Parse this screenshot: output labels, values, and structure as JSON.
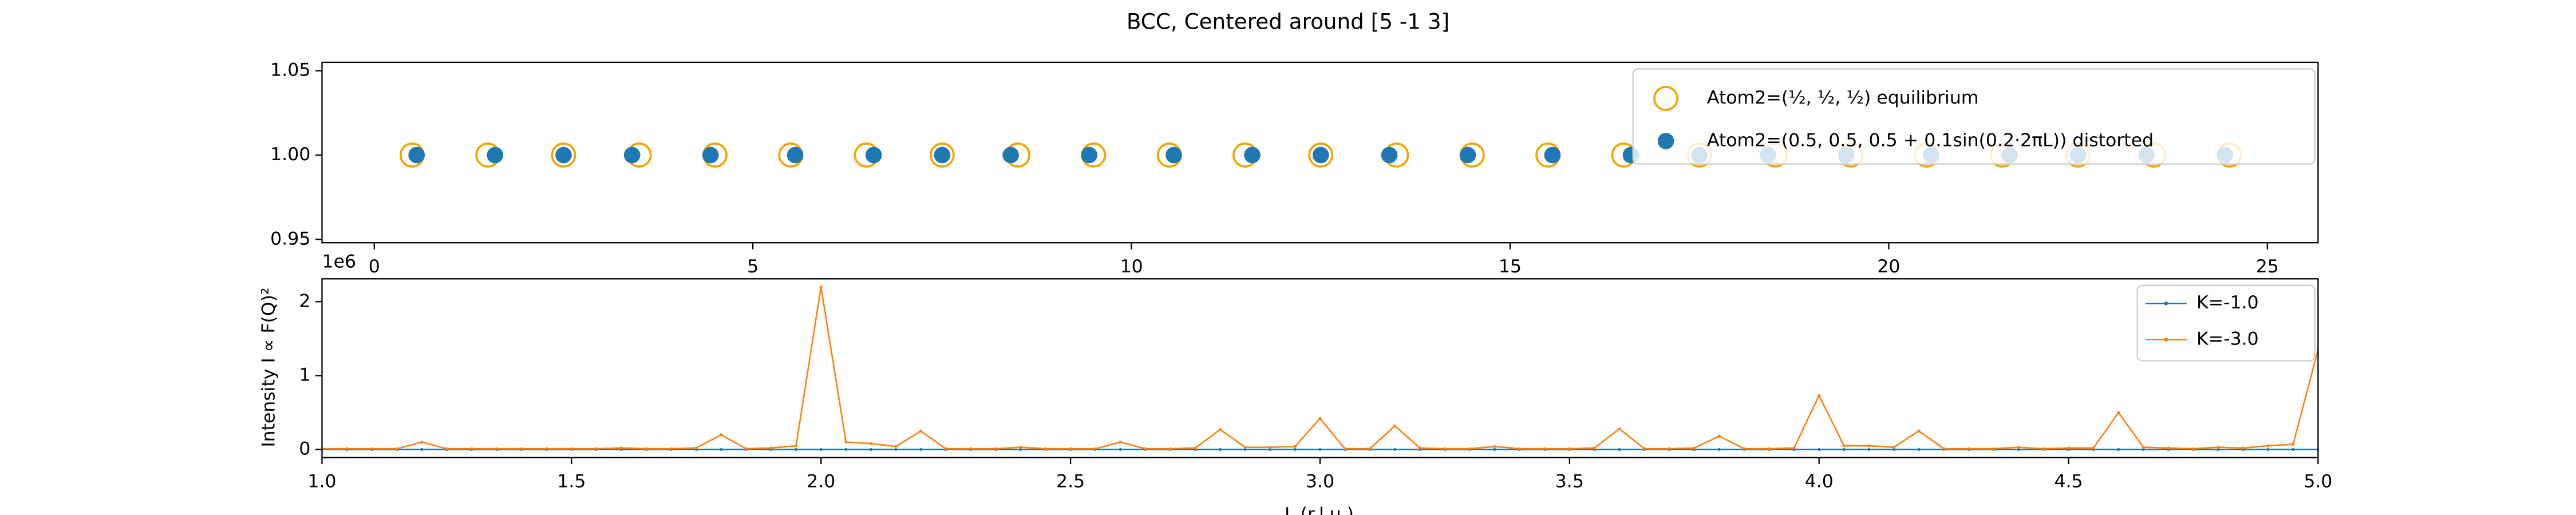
{
  "chart_data": [
    {
      "type": "scatter",
      "title": "BCC, Centered around [5 -1 3]",
      "xlim": [
        -0.69,
        25.67
      ],
      "xticks": [
        0,
        5,
        10,
        15,
        20,
        25
      ],
      "ylim": [
        0.948,
        1.055
      ],
      "yticks": [
        {
          "value": 0.95,
          "label": "0.95"
        },
        {
          "value": 1.0,
          "label": "1.00"
        },
        {
          "value": 1.05,
          "label": "1.05"
        }
      ],
      "legend": "upper right",
      "series": [
        {
          "name": "Atom2=(½, ½, ½) equilibrium",
          "color": "#f5a300",
          "marker": "hollow",
          "x": [
            0.5,
            1.5,
            2.5,
            3.5,
            4.5,
            5.5,
            6.5,
            7.5,
            8.5,
            9.5,
            10.5,
            11.5,
            12.5,
            13.5,
            14.5,
            15.5,
            16.5,
            17.5,
            18.5,
            19.5,
            20.5,
            21.5,
            22.5,
            23.5,
            24.5
          ],
          "values": [
            1,
            1,
            1,
            1,
            1,
            1,
            1,
            1,
            1,
            1,
            1,
            1,
            1,
            1,
            1,
            1,
            1,
            1,
            1,
            1,
            1,
            1,
            1,
            1,
            1
          ]
        },
        {
          "name": "Atom2=(0.5, 0.5, 0.5 + 0.1sin(0.2·2πL)) distorted",
          "color": "#1f77b4",
          "marker": "filled",
          "x": [
            0.559,
            1.595,
            2.5,
            3.405,
            4.441,
            5.559,
            6.595,
            7.5,
            8.405,
            9.441,
            10.559,
            11.595,
            12.5,
            13.405,
            14.441,
            15.559,
            16.595,
            17.5,
            18.405,
            19.441,
            20.559,
            21.595,
            22.5,
            23.405,
            24.441
          ],
          "values": [
            1,
            1,
            1,
            1,
            1,
            1,
            1,
            1,
            1,
            1,
            1,
            1,
            1,
            1,
            1,
            1,
            1,
            1,
            1,
            1,
            1,
            1,
            1,
            1,
            1
          ]
        }
      ]
    },
    {
      "type": "line",
      "x_label": "L (r.l.u.)",
      "y_label": "Intensity I ∝ F(Q)²",
      "offset_label": "1e6",
      "xlim": [
        1.0,
        5.0
      ],
      "xticks": [
        {
          "value": 1,
          "label": "1.0"
        },
        {
          "value": 1.5,
          "label": "1.5"
        },
        {
          "value": 2,
          "label": "2.0"
        },
        {
          "value": 2.5,
          "label": "2.5"
        },
        {
          "value": 3,
          "label": "3.0"
        },
        {
          "value": 3.5,
          "label": "3.5"
        },
        {
          "value": 4,
          "label": "4.0"
        },
        {
          "value": 4.5,
          "label": "4.5"
        },
        {
          "value": 5,
          "label": "5.0"
        }
      ],
      "ylim": [
        -0.11,
        2.31
      ],
      "yticks": [
        0,
        1,
        2
      ],
      "legend": "upper right",
      "x": [
        1.0,
        1.05,
        1.1,
        1.15,
        1.2,
        1.25,
        1.3,
        1.35,
        1.4,
        1.45,
        1.5,
        1.55,
        1.6,
        1.65,
        1.7,
        1.75,
        1.8,
        1.85,
        1.9,
        1.95,
        2.0,
        2.05,
        2.1,
        2.15,
        2.2,
        2.25,
        2.3,
        2.35,
        2.4,
        2.45,
        2.5,
        2.55,
        2.6,
        2.65,
        2.7,
        2.75,
        2.8,
        2.85,
        2.9,
        2.95,
        3.0,
        3.05,
        3.1,
        3.15,
        3.2,
        3.25,
        3.3,
        3.35,
        3.4,
        3.45,
        3.5,
        3.55,
        3.6,
        3.65,
        3.7,
        3.75,
        3.8,
        3.85,
        3.9,
        3.95,
        4.0,
        4.05,
        4.1,
        4.15,
        4.2,
        4.25,
        4.3,
        4.35,
        4.4,
        4.45,
        4.5,
        4.55,
        4.6,
        4.65,
        4.7,
        4.75,
        4.8,
        4.85,
        4.9,
        4.95,
        5.0
      ],
      "series": [
        {
          "name": "K=-1.0",
          "color": "#1f77b4",
          "values": [
            0,
            0,
            0,
            0,
            0,
            0,
            0,
            0,
            0,
            0,
            0,
            0,
            0,
            0,
            0,
            0,
            0,
            0,
            0,
            0,
            0,
            0,
            0,
            0,
            0,
            0,
            0,
            0,
            0,
            0,
            0,
            0,
            0,
            0,
            0,
            0,
            0,
            0,
            0,
            0,
            0,
            0,
            0,
            0,
            0,
            0,
            0,
            0,
            0,
            0,
            0,
            0,
            0,
            0,
            0,
            0,
            0,
            0,
            0,
            0,
            0,
            0,
            0,
            0,
            0,
            0,
            0,
            0,
            0,
            0,
            0,
            0,
            0,
            0,
            0,
            0,
            0,
            0,
            0,
            0,
            0
          ]
        },
        {
          "name": "K=-3.0",
          "color": "#ff7f0e",
          "values": [
            0.01,
            0.01,
            0.01,
            0.01,
            0.1,
            0.01,
            0.01,
            0.01,
            0.01,
            0.01,
            0.01,
            0.01,
            0.02,
            0.01,
            0.01,
            0.02,
            0.2,
            0.01,
            0.02,
            0.05,
            2.2,
            0.1,
            0.08,
            0.04,
            0.25,
            0.01,
            0.01,
            0.01,
            0.03,
            0.01,
            0.01,
            0.01,
            0.1,
            0.01,
            0.01,
            0.02,
            0.27,
            0.03,
            0.03,
            0.04,
            0.42,
            0.01,
            0.01,
            0.32,
            0.02,
            0.01,
            0.01,
            0.04,
            0.01,
            0.01,
            0.01,
            0.02,
            0.28,
            0.01,
            0.01,
            0.02,
            0.18,
            0.01,
            0.01,
            0.02,
            0.73,
            0.05,
            0.05,
            0.03,
            0.25,
            0.01,
            0.01,
            0.01,
            0.03,
            0.01,
            0.02,
            0.02,
            0.5,
            0.03,
            0.02,
            0.01,
            0.03,
            0.02,
            0.05,
            0.07,
            1.35
          ]
        }
      ]
    }
  ]
}
